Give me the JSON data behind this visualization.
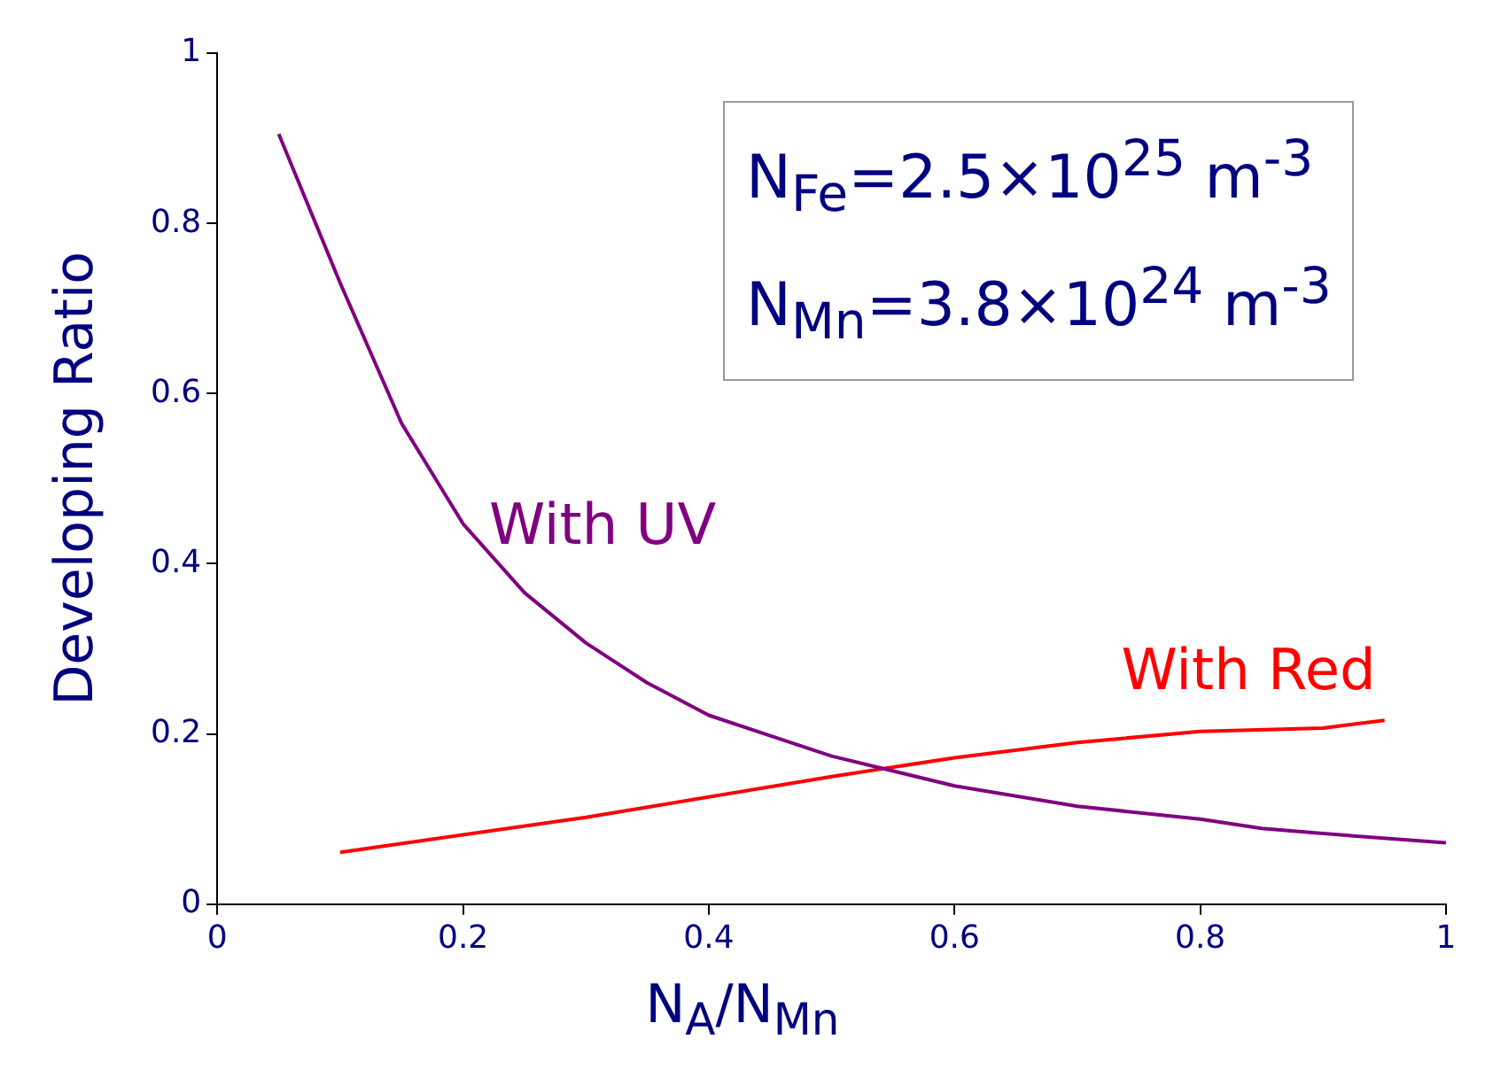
{
  "chart_data": {
    "type": "line",
    "xlabel": "N$_{A}$/N$_{Mn}$",
    "ylabel": "Developing Ratio",
    "xlim": [
      0,
      1
    ],
    "xticks": [
      0,
      0.2,
      0.4,
      0.6,
      0.8,
      1
    ],
    "ylim": [
      0,
      1
    ],
    "yticks": [
      0,
      0.2,
      0.4,
      0.6,
      0.8,
      1
    ],
    "grid": false,
    "legend": false,
    "marker": "none",
    "line_style": "solid",
    "series": [
      {
        "name": "With UV",
        "color": "#800080",
        "x": [
          0.05,
          0.1,
          0.15,
          0.2,
          0.25,
          0.3,
          0.35,
          0.4,
          0.45,
          0.5,
          0.6,
          0.7,
          0.8,
          0.85,
          0.9,
          1.0
        ],
        "values": [
          0.905,
          0.73,
          0.565,
          0.447,
          0.366,
          0.307,
          0.26,
          0.222,
          0.198,
          0.174,
          0.139,
          0.115,
          0.1,
          0.089,
          0.083,
          0.072
        ]
      },
      {
        "name": "With Red",
        "color": "#ff0000",
        "x": [
          0.1,
          0.3,
          0.5,
          0.6,
          0.7,
          0.8,
          0.9,
          0.95
        ],
        "values": [
          0.061,
          0.102,
          0.15,
          0.172,
          0.19,
          0.203,
          0.207,
          0.216
        ]
      }
    ],
    "annotations": [
      "N$_{Fe}$=2.5×10$^{25}$ m$^{-3}$",
      "N$_{Mn}$=3.8×10$^{24}$ m$^{-3}$"
    ]
  }
}
